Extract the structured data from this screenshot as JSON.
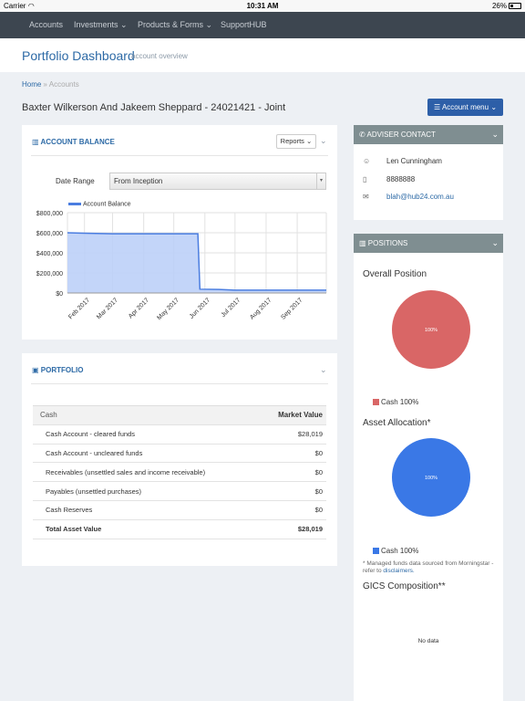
{
  "status_bar": {
    "carrier": "Carrier",
    "time": "10:31 AM",
    "battery": "26%"
  },
  "nav": {
    "items": [
      {
        "label": "Accounts"
      },
      {
        "label": "Investments ⌄"
      },
      {
        "label": "Products & Forms ⌄"
      },
      {
        "label": "SupportHUB"
      }
    ]
  },
  "header": {
    "title": "Portfolio Dashboard",
    "subtitle": "account overview"
  },
  "breadcrumb": {
    "home": "Home",
    "separator": "»",
    "current": "Accounts"
  },
  "account": {
    "name": "Baxter Wilkerson And Jakeem Sheppard - 24021421 - Joint",
    "menu_label": "Account menu"
  },
  "account_balance": {
    "title": "ACCOUNT BALANCE",
    "reports_label": "Reports",
    "date_range_label": "Date Range",
    "date_range_value": "From Inception"
  },
  "chart_data": {
    "type": "area",
    "series": [
      {
        "name": "Account Balance",
        "x": [
          "2017-01-15",
          "2017-02-01",
          "2017-03-01",
          "2017-04-01",
          "2017-05-01",
          "2017-05-25",
          "2017-05-27",
          "2017-06-15",
          "2017-07-01",
          "2017-08-01",
          "2017-09-01",
          "2017-09-30"
        ],
        "values": [
          600000,
          595000,
          590000,
          590000,
          590000,
          590000,
          38000,
          35000,
          28000,
          28000,
          28000,
          28000
        ]
      }
    ],
    "x_tick_labels": [
      "Feb 2017",
      "Mar 2017",
      "Apr 2017",
      "May 2017",
      "Jun 2017",
      "Jul 2017",
      "Aug 2017",
      "Sep 2017"
    ],
    "x_ticks": [
      "2017-02-01",
      "2017-03-01",
      "2017-04-01",
      "2017-05-01",
      "2017-06-01",
      "2017-07-01",
      "2017-08-01",
      "2017-09-01"
    ],
    "y_tick_labels": [
      "$800,000",
      "$600,000",
      "$400,000",
      "$200,000",
      "$0"
    ],
    "y_ticks": [
      800000,
      600000,
      400000,
      200000,
      0
    ],
    "xlim": [
      "2017-01-15",
      "2017-09-30"
    ],
    "ylim": [
      0,
      800000
    ],
    "grid": true,
    "legend": "top-left",
    "line_color": "#4a7de0",
    "fill_color": "#bcd0f8"
  },
  "portfolio": {
    "title": "PORTFOLIO",
    "header": {
      "label": "Cash",
      "value": "Market Value"
    },
    "rows": [
      {
        "label": "Cash Account - cleared funds",
        "value": "$28,019"
      },
      {
        "label": "Cash Account - uncleared funds",
        "value": "$0"
      },
      {
        "label": "Receivables (unsettled sales and income receivable)",
        "value": "$0"
      },
      {
        "label": "Payables (unsettled purchases)",
        "value": "$0"
      },
      {
        "label": "Cash Reserves",
        "value": "$0"
      }
    ],
    "total": {
      "label": "Total Asset Value",
      "value": "$28,019"
    }
  },
  "adviser": {
    "title": "ADVISER CONTACT",
    "name": "Len Cunningham",
    "phone": "8888888",
    "email": "blah@hub24.com.au"
  },
  "positions": {
    "title": "POSITIONS",
    "overall": {
      "title": "Overall Position",
      "slice_label": "100%",
      "legend": "Cash 100%",
      "color": "#d96666",
      "share": 1.0
    },
    "asset_allocation": {
      "title": "Asset Allocation*",
      "slice_label": "100%",
      "legend": "Cash 100%",
      "color": "#3a78e6",
      "share": 1.0
    },
    "disclaimer_text": "* Managed funds data sourced from Morningstar - refer to ",
    "disclaimer_link": "disclaimers.",
    "gics": {
      "title": "GICS Composition**",
      "no_data": "No data"
    }
  }
}
